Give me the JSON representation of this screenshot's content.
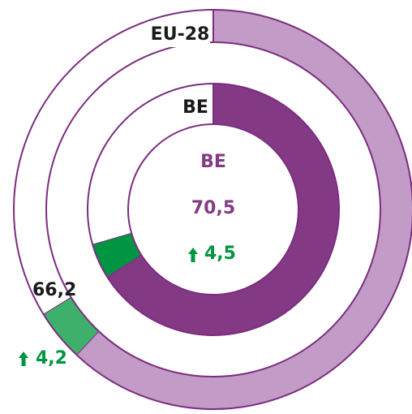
{
  "chart_data": {
    "type": "donut",
    "colors": {
      "base": [
        "#c29bc6",
        "#843985"
      ],
      "change": [
        "#3fb06b",
        "#009540"
      ],
      "outline": "#7b2d7f"
    },
    "rings": [
      {
        "name": "EU-28",
        "value": 66.2,
        "value_label": "66,2",
        "change": 4.2,
        "change_label": "4,2"
      },
      {
        "name": "BE",
        "value": 70.5,
        "value_label": "70,5",
        "change": 4.5,
        "change_label": "4,5"
      }
    ]
  }
}
